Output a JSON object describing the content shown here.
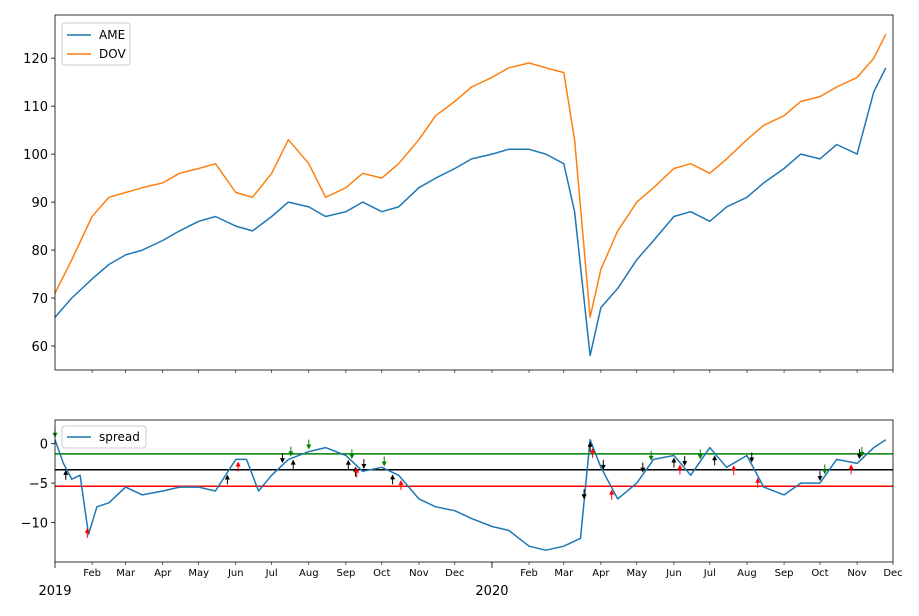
{
  "chart_data": [
    {
      "type": "line",
      "title": "",
      "xlabel": "",
      "ylabel": "",
      "ylim": [
        55,
        129
      ],
      "yticks": [
        60,
        70,
        80,
        90,
        100,
        110,
        120
      ],
      "legend": "upper left",
      "series": [
        {
          "name": "AME",
          "color": "#1f77b4",
          "x": [
            "2019-01-01",
            "2019-01-15",
            "2019-02-01",
            "2019-02-15",
            "2019-03-01",
            "2019-03-15",
            "2019-04-01",
            "2019-04-15",
            "2019-05-01",
            "2019-05-15",
            "2019-06-01",
            "2019-06-15",
            "2019-07-01",
            "2019-07-15",
            "2019-08-01",
            "2019-08-15",
            "2019-09-01",
            "2019-09-15",
            "2019-10-01",
            "2019-10-15",
            "2019-11-01",
            "2019-11-15",
            "2019-12-01",
            "2019-12-15",
            "2020-01-01",
            "2020-01-15",
            "2020-02-01",
            "2020-02-15",
            "2020-03-01",
            "2020-03-10",
            "2020-03-23",
            "2020-04-01",
            "2020-04-15",
            "2020-05-01",
            "2020-05-15",
            "2020-06-01",
            "2020-06-15",
            "2020-07-01",
            "2020-07-15",
            "2020-08-01",
            "2020-08-15",
            "2020-09-01",
            "2020-09-15",
            "2020-10-01",
            "2020-10-15",
            "2020-11-01",
            "2020-11-15",
            "2020-11-25"
          ],
          "values": [
            66,
            70,
            74,
            77,
            79,
            80,
            82,
            84,
            86,
            87,
            85,
            84,
            87,
            90,
            89,
            87,
            88,
            90,
            88,
            89,
            93,
            95,
            97,
            99,
            100,
            101,
            101,
            100,
            98,
            88,
            58,
            68,
            72,
            78,
            82,
            87,
            88,
            86,
            89,
            91,
            94,
            97,
            100,
            99,
            102,
            100,
            113,
            118
          ]
        },
        {
          "name": "DOV",
          "color": "#ff7f0e",
          "x": [
            "2019-01-01",
            "2019-01-15",
            "2019-02-01",
            "2019-02-15",
            "2019-03-01",
            "2019-03-15",
            "2019-04-01",
            "2019-04-15",
            "2019-05-01",
            "2019-05-15",
            "2019-06-01",
            "2019-06-15",
            "2019-07-01",
            "2019-07-15",
            "2019-08-01",
            "2019-08-15",
            "2019-09-01",
            "2019-09-15",
            "2019-10-01",
            "2019-10-15",
            "2019-11-01",
            "2019-11-15",
            "2019-12-01",
            "2019-12-15",
            "2020-01-01",
            "2020-01-15",
            "2020-02-01",
            "2020-02-15",
            "2020-03-01",
            "2020-03-10",
            "2020-03-23",
            "2020-04-01",
            "2020-04-15",
            "2020-05-01",
            "2020-05-15",
            "2020-06-01",
            "2020-06-15",
            "2020-07-01",
            "2020-07-15",
            "2020-08-01",
            "2020-08-15",
            "2020-09-01",
            "2020-09-15",
            "2020-10-01",
            "2020-10-15",
            "2020-11-01",
            "2020-11-15",
            "2020-11-25"
          ],
          "values": [
            71,
            78,
            87,
            91,
            92,
            93,
            94,
            96,
            97,
            98,
            92,
            91,
            96,
            103,
            98,
            91,
            93,
            96,
            95,
            98,
            103,
            108,
            111,
            114,
            116,
            118,
            119,
            118,
            117,
            103,
            66,
            76,
            84,
            90,
            93,
            97,
            98,
            96,
            99,
            103,
            106,
            108,
            111,
            112,
            114,
            116,
            120,
            125
          ]
        }
      ]
    },
    {
      "type": "line",
      "title": "",
      "xlabel": "",
      "ylabel": "",
      "ylim": [
        -15,
        3
      ],
      "yticks": [
        0,
        -5,
        -10
      ],
      "legend": "upper left",
      "x_ticks_major": [
        "2019",
        "2020"
      ],
      "x_ticks_minor": [
        "Feb",
        "Mar",
        "Apr",
        "May",
        "Jun",
        "Jul",
        "Aug",
        "Sep",
        "Oct",
        "Nov",
        "Dec",
        "Feb",
        "Mar",
        "Apr",
        "May",
        "Jun",
        "Jul",
        "Aug",
        "Sep",
        "Oct",
        "Nov",
        "Dec"
      ],
      "hlines": [
        {
          "y": -1.3,
          "color": "#008000"
        },
        {
          "y": -3.3,
          "color": "#000000"
        },
        {
          "y": -5.4,
          "color": "#ff0000"
        }
      ],
      "series": [
        {
          "name": "spread",
          "color": "#1f77b4",
          "x": [
            "2019-01-01",
            "2019-01-08",
            "2019-01-15",
            "2019-01-22",
            "2019-01-29",
            "2019-02-05",
            "2019-02-15",
            "2019-03-01",
            "2019-03-15",
            "2019-04-01",
            "2019-04-15",
            "2019-05-01",
            "2019-05-15",
            "2019-06-01",
            "2019-06-10",
            "2019-06-20",
            "2019-07-01",
            "2019-07-15",
            "2019-08-01",
            "2019-08-15",
            "2019-09-01",
            "2019-09-15",
            "2019-10-01",
            "2019-10-15",
            "2019-11-01",
            "2019-11-15",
            "2019-12-01",
            "2019-12-15",
            "2020-01-01",
            "2020-01-15",
            "2020-02-01",
            "2020-02-15",
            "2020-03-01",
            "2020-03-15",
            "2020-03-23",
            "2020-04-01",
            "2020-04-15",
            "2020-05-01",
            "2020-05-15",
            "2020-06-01",
            "2020-06-15",
            "2020-07-01",
            "2020-07-15",
            "2020-08-01",
            "2020-08-15",
            "2020-09-01",
            "2020-09-15",
            "2020-10-01",
            "2020-10-15",
            "2020-11-01",
            "2020-11-15",
            "2020-11-25"
          ],
          "values": [
            0.5,
            -2.5,
            -4.5,
            -4,
            -11.5,
            -8,
            -7.5,
            -5.5,
            -6.5,
            -6,
            -5.5,
            -5.5,
            -6,
            -2,
            -2,
            -6,
            -4,
            -2,
            -1,
            -0.5,
            -1.5,
            -3.5,
            -3,
            -4,
            -7,
            -8,
            -8.5,
            -9.5,
            -10.5,
            -11,
            -13,
            -13.5,
            -13,
            -12,
            0.5,
            -3,
            -7,
            -5,
            -2,
            -1.5,
            -4,
            -0.5,
            -3,
            -1.5,
            -5.5,
            -6.5,
            -5,
            -5,
            -2,
            -2.5,
            -0.5,
            0.5
          ]
        }
      ],
      "signals": [
        {
          "x": "2019-01-01",
          "dir": "down",
          "color": "#008000"
        },
        {
          "x": "2019-01-10",
          "dir": "up",
          "color": "#000000"
        },
        {
          "x": "2019-01-28",
          "dir": "up",
          "color": "#ff0000"
        },
        {
          "x": "2019-05-25",
          "dir": "up",
          "color": "#000000"
        },
        {
          "x": "2019-06-03",
          "dir": "up",
          "color": "#ff0000"
        },
        {
          "x": "2019-07-10",
          "dir": "down",
          "color": "#000000"
        },
        {
          "x": "2019-07-17",
          "dir": "down",
          "color": "#008000"
        },
        {
          "x": "2019-07-19",
          "dir": "up",
          "color": "#000000"
        },
        {
          "x": "2019-08-01",
          "dir": "down",
          "color": "#008000"
        },
        {
          "x": "2019-09-03",
          "dir": "up",
          "color": "#000000"
        },
        {
          "x": "2019-09-06",
          "dir": "down",
          "color": "#008000"
        },
        {
          "x": "2019-09-09",
          "dir": "up",
          "color": "#000000"
        },
        {
          "x": "2019-09-10",
          "dir": "up",
          "color": "#ff0000"
        },
        {
          "x": "2019-09-16",
          "dir": "down",
          "color": "#000000"
        },
        {
          "x": "2019-10-03",
          "dir": "down",
          "color": "#008000"
        },
        {
          "x": "2019-10-10",
          "dir": "up",
          "color": "#000000"
        },
        {
          "x": "2019-10-17",
          "dir": "up",
          "color": "#ff0000"
        },
        {
          "x": "2020-03-18",
          "dir": "down",
          "color": "#008000"
        },
        {
          "x": "2020-03-18",
          "dir": "down",
          "color": "#000000"
        },
        {
          "x": "2020-03-23",
          "dir": "up",
          "color": "#000000"
        },
        {
          "x": "2020-03-25",
          "dir": "up",
          "color": "#ff0000"
        },
        {
          "x": "2020-04-03",
          "dir": "down",
          "color": "#000000"
        },
        {
          "x": "2020-04-10",
          "dir": "up",
          "color": "#ff0000"
        },
        {
          "x": "2020-05-06",
          "dir": "down",
          "color": "#000000"
        },
        {
          "x": "2020-05-13",
          "dir": "down",
          "color": "#008000"
        },
        {
          "x": "2020-06-01",
          "dir": "up",
          "color": "#000000"
        },
        {
          "x": "2020-06-06",
          "dir": "up",
          "color": "#ff0000"
        },
        {
          "x": "2020-06-10",
          "dir": "down",
          "color": "#000000"
        },
        {
          "x": "2020-06-23",
          "dir": "down",
          "color": "#008000"
        },
        {
          "x": "2020-07-05",
          "dir": "up",
          "color": "#000000"
        },
        {
          "x": "2020-07-21",
          "dir": "up",
          "color": "#ff0000"
        },
        {
          "x": "2020-08-05",
          "dir": "down",
          "color": "#000000"
        },
        {
          "x": "2020-08-10",
          "dir": "up",
          "color": "#ff0000"
        },
        {
          "x": "2020-10-01",
          "dir": "down",
          "color": "#000000"
        },
        {
          "x": "2020-10-05",
          "dir": "down",
          "color": "#008000"
        },
        {
          "x": "2020-10-27",
          "dir": "up",
          "color": "#ff0000"
        },
        {
          "x": "2020-11-03",
          "dir": "down",
          "color": "#000000"
        },
        {
          "x": "2020-11-05",
          "dir": "down",
          "color": "#008000"
        }
      ]
    }
  ]
}
